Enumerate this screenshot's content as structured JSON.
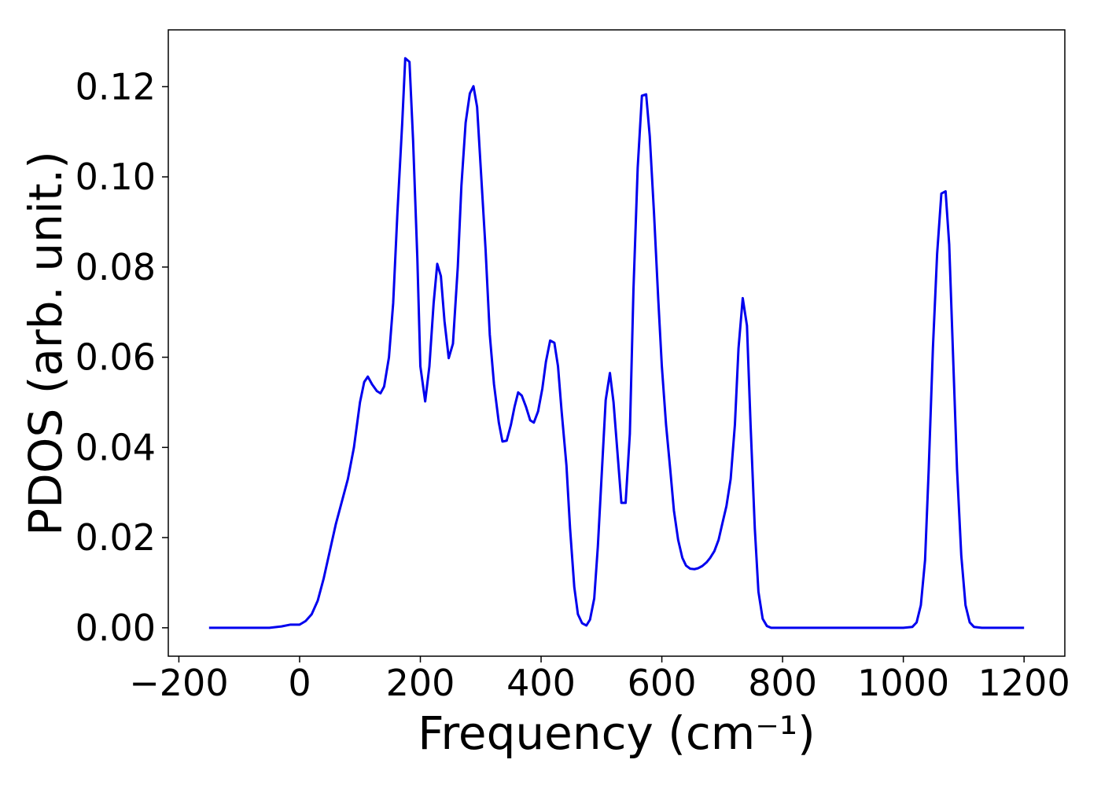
{
  "chart_data": {
    "type": "line",
    "xlabel": "Frequency (cm⁻¹)",
    "ylabel": "PDOS (arb. unit.)",
    "xlim": [
      -217.5,
      1267.5
    ],
    "ylim": [
      -0.0063,
      0.1326
    ],
    "xticks": [
      {
        "value": -200,
        "label": "−200"
      },
      0,
      200,
      400,
      600,
      800,
      1000,
      1200
    ],
    "yticks": [
      {
        "value": 0,
        "label": "0.00"
      },
      {
        "value": 0.02,
        "label": "0.02"
      },
      {
        "value": 0.04,
        "label": "0.04"
      },
      {
        "value": 0.06,
        "label": "0.06"
      },
      {
        "value": 0.08,
        "label": "0.08"
      },
      {
        "value": 0.1,
        "label": "0.10"
      },
      {
        "value": 0.12,
        "label": "0.12"
      }
    ],
    "grid": false,
    "color": "#0000ee",
    "x": [
      -150,
      -50,
      -30,
      -15,
      0,
      10,
      20,
      30,
      40,
      50,
      60,
      70,
      80,
      90,
      100,
      107,
      113,
      120,
      128,
      134,
      140,
      148,
      155,
      162,
      170,
      175,
      182,
      188,
      195,
      200,
      208,
      215,
      222,
      228,
      234,
      240,
      247,
      254,
      262,
      268,
      275,
      282,
      288,
      294,
      300,
      308,
      315,
      322,
      330,
      336,
      343,
      350,
      356,
      362,
      368,
      375,
      382,
      388,
      395,
      402,
      408,
      415,
      422,
      428,
      434,
      442,
      448,
      455,
      461,
      468,
      475,
      481,
      488,
      494,
      500,
      507,
      514,
      520,
      527,
      533,
      540,
      547,
      553,
      560,
      567,
      574,
      580,
      587,
      594,
      600,
      607,
      614,
      620,
      627,
      634,
      640,
      647,
      654,
      660,
      667,
      674,
      680,
      687,
      694,
      700,
      707,
      714,
      721,
      727,
      734,
      741,
      747,
      754,
      760,
      767,
      774,
      781,
      1000,
      1015,
      1022,
      1029,
      1036,
      1042,
      1049,
      1056,
      1063,
      1070,
      1076,
      1083,
      1089,
      1096,
      1103,
      1110,
      1117,
      1130,
      1200
    ],
    "values": [
      0,
      0,
      0.0003,
      0.0007,
      0.0007,
      0.0015,
      0.003,
      0.006,
      0.011,
      0.017,
      0.023,
      0.028,
      0.033,
      0.04,
      0.05,
      0.0545,
      0.0557,
      0.054,
      0.0525,
      0.052,
      0.0535,
      0.06,
      0.072,
      0.092,
      0.112,
      0.1263,
      0.1255,
      0.108,
      0.082,
      0.058,
      0.0502,
      0.058,
      0.072,
      0.0807,
      0.078,
      0.068,
      0.0598,
      0.063,
      0.08,
      0.098,
      0.112,
      0.1185,
      0.1201,
      0.1155,
      0.102,
      0.084,
      0.065,
      0.054,
      0.0455,
      0.0413,
      0.0415,
      0.045,
      0.049,
      0.0522,
      0.0515,
      0.049,
      0.046,
      0.0455,
      0.048,
      0.053,
      0.059,
      0.0637,
      0.0632,
      0.058,
      0.048,
      0.036,
      0.022,
      0.009,
      0.003,
      0.001,
      0.0005,
      0.0018,
      0.0065,
      0.018,
      0.033,
      0.0505,
      0.0565,
      0.05,
      0.038,
      0.0277,
      0.0277,
      0.043,
      0.075,
      0.102,
      0.118,
      0.1183,
      0.109,
      0.092,
      0.073,
      0.058,
      0.045,
      0.035,
      0.026,
      0.0195,
      0.0155,
      0.0138,
      0.0131,
      0.013,
      0.0132,
      0.0137,
      0.0145,
      0.0155,
      0.017,
      0.0195,
      0.023,
      0.027,
      0.033,
      0.045,
      0.062,
      0.0731,
      0.067,
      0.045,
      0.022,
      0.008,
      0.002,
      0.0004,
      0,
      0,
      0.0002,
      0.0012,
      0.005,
      0.015,
      0.035,
      0.062,
      0.083,
      0.0963,
      0.0968,
      0.085,
      0.058,
      0.035,
      0.016,
      0.005,
      0.0012,
      0.0002,
      0,
      0
    ]
  }
}
